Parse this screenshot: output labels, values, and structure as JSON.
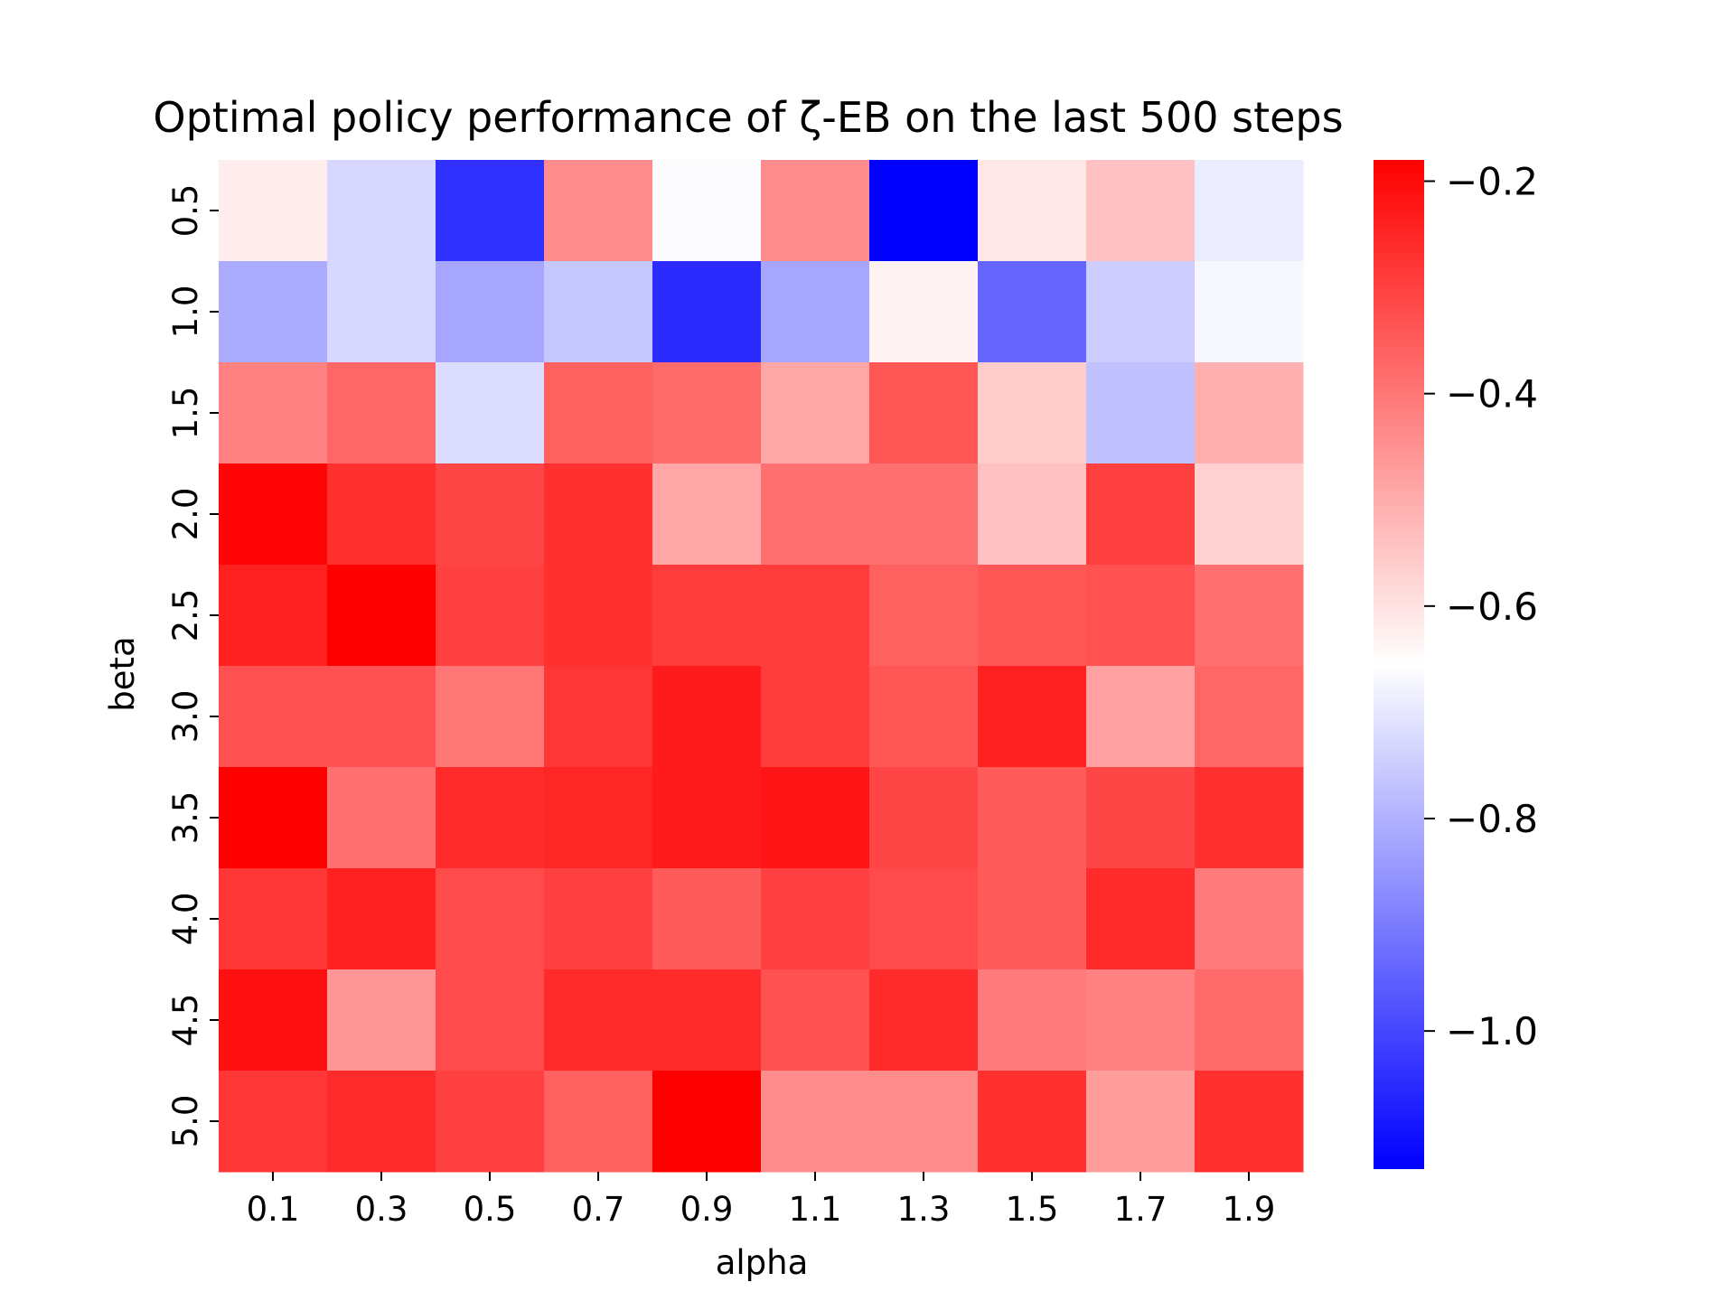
{
  "chart_data": {
    "type": "heatmap",
    "title": "Optimal policy performance of ζ-EB on the last 500 steps",
    "xlabel": "alpha",
    "ylabel": "beta",
    "x_categories": [
      "0.1",
      "0.3",
      "0.5",
      "0.7",
      "0.9",
      "1.1",
      "1.3",
      "1.5",
      "1.7",
      "1.9"
    ],
    "y_categories": [
      "0.5",
      "1.0",
      "1.5",
      "2.0",
      "2.5",
      "3.0",
      "3.5",
      "4.0",
      "4.5",
      "5.0"
    ],
    "values": [
      [
        -0.62,
        -0.73,
        -1.04,
        -0.44,
        -0.66,
        -0.44,
        -1.13,
        -0.61,
        -0.54,
        -0.69
      ],
      [
        -0.81,
        -0.73,
        -0.82,
        -0.76,
        -1.05,
        -0.82,
        -0.63,
        -0.94,
        -0.75,
        -0.67
      ],
      [
        -0.42,
        -0.37,
        -0.72,
        -0.36,
        -0.38,
        -0.49,
        -0.34,
        -0.56,
        -0.77,
        -0.51
      ],
      [
        -0.19,
        -0.27,
        -0.31,
        -0.27,
        -0.49,
        -0.39,
        -0.39,
        -0.54,
        -0.3,
        -0.57
      ],
      [
        -0.24,
        -0.18,
        -0.3,
        -0.27,
        -0.29,
        -0.29,
        -0.36,
        -0.34,
        -0.33,
        -0.39
      ],
      [
        -0.33,
        -0.33,
        -0.4,
        -0.28,
        -0.23,
        -0.29,
        -0.34,
        -0.24,
        -0.48,
        -0.37
      ],
      [
        -0.18,
        -0.39,
        -0.26,
        -0.25,
        -0.23,
        -0.22,
        -0.31,
        -0.35,
        -0.31,
        -0.27
      ],
      [
        -0.28,
        -0.24,
        -0.32,
        -0.3,
        -0.35,
        -0.3,
        -0.32,
        -0.35,
        -0.26,
        -0.41
      ],
      [
        -0.21,
        -0.46,
        -0.32,
        -0.26,
        -0.26,
        -0.33,
        -0.26,
        -0.41,
        -0.42,
        -0.38
      ],
      [
        -0.28,
        -0.26,
        -0.3,
        -0.36,
        -0.15,
        -0.44,
        -0.44,
        -0.27,
        -0.47,
        -0.27
      ]
    ],
    "colormap": {
      "type": "bwr",
      "vmin": -1.13,
      "vcenter": -0.655,
      "vmax": -0.18,
      "low_color": "#0000ff",
      "mid_color": "#ffffff",
      "high_color": "#ff0000"
    },
    "colorbar": {
      "ticks": [
        -0.2,
        -0.4,
        -0.6,
        -0.8,
        -1.0
      ],
      "tick_labels": [
        "−0.2",
        "−0.4",
        "−0.6",
        "−0.8",
        "−1.0"
      ]
    },
    "grid": false,
    "legend": "colorbar-right"
  }
}
